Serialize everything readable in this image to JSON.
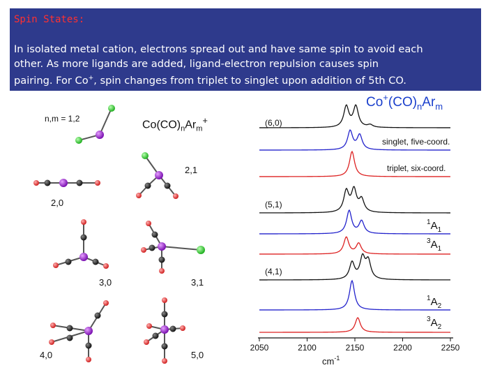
{
  "slide": {
    "title": "Spin States:",
    "line1": "In isolated metal cation, electrons spread out and have same spin to avoid each",
    "line2": "other. As more ligands are added, ligand-electron repulsion causes spin",
    "line3_pre": "pairing.  For Co",
    "line3_sup": "+",
    "line3_post": ", spin changes from triplet to singlet upon addition of 5th CO."
  },
  "structures": {
    "header": "n,m = 1,2",
    "formula_main": "Co(CO)",
    "formula_n": "n",
    "formula_ar": "Ar",
    "formula_m": "m",
    "formula_plus": "+",
    "labels": [
      "2,1",
      "2,0",
      "3,0",
      "3,1",
      "4,0",
      "5,0"
    ]
  },
  "spectra": {
    "title_co": "Co",
    "title_plus": "+",
    "title_mid": "(CO)",
    "title_n": "n",
    "title_ar": "Ar",
    "title_m": "m",
    "trace_labels": [
      "(6,0)",
      "singlet, five-coord.",
      "triplet, six-coord.",
      "(5,1)",
      "(4,1)"
    ],
    "state_labels": [
      {
        "sup": "1",
        "main": "A",
        "sub": "1"
      },
      {
        "sup": "3",
        "main": "A",
        "sub": "1"
      },
      {
        "sup": "1",
        "main": "A",
        "sub": "2"
      },
      {
        "sup": "3",
        "main": "A",
        "sub": "2"
      }
    ],
    "x_ticks": [
      "2050",
      "2100",
      "2150",
      "2200",
      "2250"
    ],
    "x_unit": "cm",
    "x_unit_sup": "-1",
    "colors": {
      "experiment": "#111111",
      "singlet": "#2222cc",
      "triplet": "#dd2222"
    }
  },
  "chart_data": {
    "type": "line",
    "x_label": "cm-1",
    "xlim": [
      2050,
      2250
    ],
    "x_ticks": [
      2050,
      2100,
      2150,
      2200,
      2250
    ],
    "series": [
      {
        "name": "(6,0)",
        "kind": "experiment",
        "peaks": [
          {
            "x": 2141,
            "h": 1.0
          },
          {
            "x": 2151,
            "h": 1.0
          },
          {
            "x": 2166,
            "h": 0.12
          }
        ]
      },
      {
        "name": "singlet, five-coord.",
        "kind": "singlet",
        "peaks": [
          {
            "x": 2145,
            "h": 0.9
          },
          {
            "x": 2155,
            "h": 0.7
          }
        ]
      },
      {
        "name": "triplet, six-coord.",
        "kind": "triplet",
        "peaks": [
          {
            "x": 2147,
            "h": 1.2
          }
        ]
      },
      {
        "name": "(5,1)",
        "kind": "experiment",
        "peaks": [
          {
            "x": 2141,
            "h": 1.0
          },
          {
            "x": 2149,
            "h": 1.05
          },
          {
            "x": 2157,
            "h": 0.6
          }
        ]
      },
      {
        "name": "1A1",
        "kind": "singlet",
        "peaks": [
          {
            "x": 2144,
            "h": 1.1
          },
          {
            "x": 2157,
            "h": 0.6
          }
        ]
      },
      {
        "name": "3A1",
        "kind": "triplet",
        "peaks": [
          {
            "x": 2141,
            "h": 0.8
          },
          {
            "x": 2154,
            "h": 0.5
          }
        ]
      },
      {
        "name": "(4,1)",
        "kind": "experiment",
        "peaks": [
          {
            "x": 2147,
            "h": 0.8
          },
          {
            "x": 2158,
            "h": 1.0
          },
          {
            "x": 2164,
            "h": 0.85
          }
        ]
      },
      {
        "name": "1A2",
        "kind": "singlet",
        "peaks": [
          {
            "x": 2147,
            "h": 1.4
          }
        ]
      },
      {
        "name": "3A2",
        "kind": "triplet",
        "peaks": [
          {
            "x": 2153,
            "h": 0.7
          }
        ]
      }
    ]
  }
}
